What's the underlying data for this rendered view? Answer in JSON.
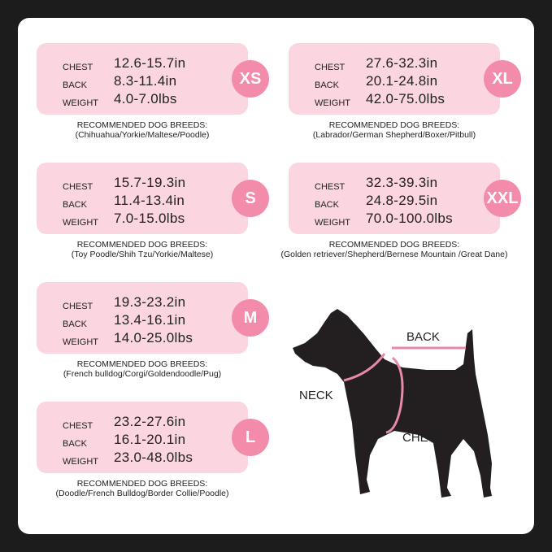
{
  "labels": {
    "chest": "CHEST",
    "back": "BACK",
    "weight": "WEIGHT",
    "recommended": "RECOMMENDED DOG BREEDS:"
  },
  "sizes": [
    {
      "size": "XS",
      "chest": "12.6-15.7in",
      "back": "8.3-11.4in",
      "weight": "4.0-7.0lbs",
      "breeds": "(Chihuahua/Yorkie/Maltese/Poodle)"
    },
    {
      "size": "S",
      "chest": "15.7-19.3in",
      "back": "11.4-13.4in",
      "weight": "7.0-15.0lbs",
      "breeds": "(Toy Poodle/Shih Tzu/Yorkie/Maltese)"
    },
    {
      "size": "M",
      "chest": "19.3-23.2in",
      "back": "13.4-16.1in",
      "weight": "14.0-25.0lbs",
      "breeds": "(French bulldog/Corgi/Goldendoodle/Pug)"
    },
    {
      "size": "L",
      "chest": "23.2-27.6in",
      "back": "16.1-20.1in",
      "weight": "23.0-48.0lbs",
      "breeds": "(Doodle/French Bulldog/Border Collie/Poodle)"
    },
    {
      "size": "XL",
      "chest": "27.6-32.3in",
      "back": "20.1-24.8in",
      "weight": "42.0-75.0lbs",
      "breeds": "(Labrador/German Shepherd/Boxer/Pitbull)"
    },
    {
      "size": "XXL",
      "chest": "32.3-39.3in",
      "back": "24.8-29.5in",
      "weight": "70.0-100.0lbs",
      "breeds": "(Golden retriever/Shepherd/Bernese Mountain /Great Dane)"
    }
  ],
  "diagram": {
    "back": "BACK",
    "neck": "NECK",
    "chest": "CHEST"
  },
  "colors": {
    "card": "#fbd5df",
    "badge": "#f38bab",
    "measure_line": "#e889a8",
    "dog": "#231f20"
  }
}
